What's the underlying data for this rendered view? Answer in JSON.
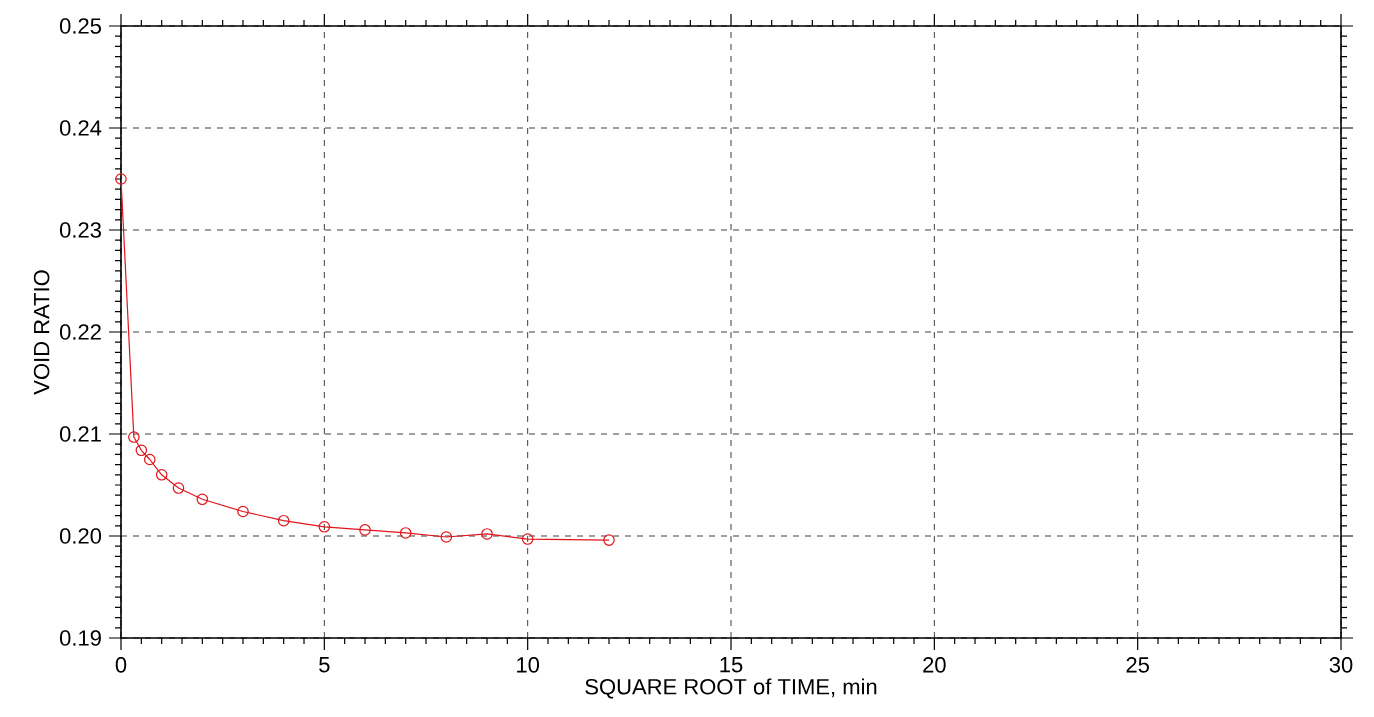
{
  "chart_data": {
    "type": "line",
    "xlabel": "SQUARE ROOT of TIME, min",
    "ylabel": "VOID RATIO",
    "x": [
      0,
      0.316,
      0.5,
      0.707,
      1,
      1.414,
      2,
      3,
      4,
      5,
      6,
      7,
      8,
      9,
      10,
      12
    ],
    "series": [
      {
        "color": "#e3141c",
        "values": [
          0.235,
          0.2097,
          0.2084,
          0.2075,
          0.206,
          0.2047,
          0.2036,
          0.2024,
          0.2015,
          0.2009,
          0.2006,
          0.2003,
          0.1999,
          0.2002,
          0.1997,
          0.1996
        ]
      }
    ],
    "xlim": [
      0,
      30
    ],
    "xticks": [
      0,
      5,
      10,
      15,
      20,
      25,
      30
    ],
    "ylim": [
      0.19,
      0.25
    ],
    "yticks": [
      0.19,
      {
        "value": 0.2,
        "label": "0.20"
      },
      0.21,
      0.22,
      0.23,
      0.24,
      0.25
    ],
    "grid": true,
    "marker": "circle",
    "line_style": "solid"
  }
}
